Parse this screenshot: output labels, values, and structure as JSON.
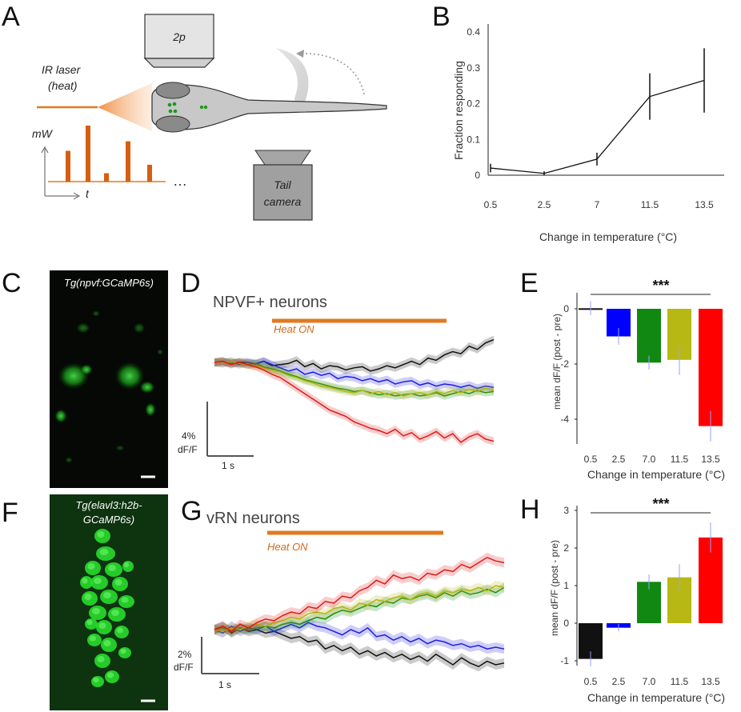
{
  "panels": {
    "A": {
      "label": "A",
      "microscope_label": "2p",
      "laser_label_1": "IR laser",
      "laser_label_2": "(heat)",
      "power_axis_label": "mW",
      "time_axis_label": "t",
      "ellipsis": "…",
      "camera_label_1": "Tail",
      "camera_label_2": "camera",
      "pulse_heights": [
        0.55,
        1.0,
        0.15,
        0.72,
        0.3
      ],
      "colors": {
        "laser": "#e07a20",
        "pulse": "#d45f12",
        "neuron": "#1a9a1a",
        "fish": "#c8c8c8"
      }
    },
    "B": {
      "label": "B"
    },
    "C": {
      "label": "C",
      "image_title": "Tg(npvf:GCaMP6s)"
    },
    "D": {
      "label": "D",
      "title": "NPVF+ neurons",
      "heat_label": "Heat ON",
      "scale_y_1": "4%",
      "scale_y_2": "dF/F",
      "scale_x": "1 s"
    },
    "E": {
      "label": "E",
      "stars": "***"
    },
    "F": {
      "label": "F",
      "image_title_1": "Tg(elavl3:h2b-",
      "image_title_2": "GCaMP6s)"
    },
    "G": {
      "label": "G",
      "title": "vRN neurons",
      "heat_label": "Heat ON",
      "scale_y_1": "2%",
      "scale_y_2": "dF/F",
      "scale_x": "1 s"
    },
    "H": {
      "label": "H",
      "stars": "***"
    }
  },
  "series_colors": [
    "#111111",
    "#1f1fe0",
    "#138a13",
    "#b5b512",
    "#e01a1a"
  ],
  "chart_data": [
    {
      "id": "B",
      "type": "line",
      "categories": [
        "0.5",
        "2.5",
        "7",
        "11.5",
        "13.5"
      ],
      "values": [
        0.02,
        0.005,
        0.045,
        0.22,
        0.265
      ],
      "errors": [
        0.012,
        0.006,
        0.018,
        0.065,
        0.09
      ],
      "xlabel": "Change in temperature (°C)",
      "ylabel": "Fraction responding",
      "yticks": [
        "0",
        "0.1",
        "0.2",
        "0.3",
        "0.4"
      ],
      "ylim": [
        0,
        0.42
      ]
    },
    {
      "id": "E",
      "type": "bar",
      "categories": [
        "0.5",
        "2.5",
        "7.0",
        "11.5",
        "13.5"
      ],
      "values": [
        0.02,
        -1.0,
        -1.95,
        -1.85,
        -4.25
      ],
      "errors": [
        0.25,
        0.3,
        0.25,
        0.55,
        0.55
      ],
      "colors": [
        "#111111",
        "#0000ff",
        "#118811",
        "#b8b814",
        "#ff0000"
      ],
      "xlabel": "Change in temperature (°C)",
      "ylabel": "mean dF/F (post - pre)",
      "yticks": [
        "0",
        "-2",
        "-4"
      ],
      "ylim": [
        -4.8,
        0.7
      ]
    },
    {
      "id": "H",
      "type": "bar",
      "categories": [
        "0.5",
        "2.5",
        "7.0",
        "11.5",
        "13.5"
      ],
      "values": [
        -0.95,
        -0.12,
        1.1,
        1.22,
        2.28
      ],
      "errors": [
        0.2,
        0.1,
        0.2,
        0.35,
        0.4
      ],
      "colors": [
        "#111111",
        "#0000ff",
        "#118811",
        "#b8b814",
        "#ff0000"
      ],
      "xlabel": "Change in temperature (°C)",
      "ylabel": "mean dF/F (post - pre)",
      "yticks": [
        "-1",
        "0",
        "1",
        "2",
        "3"
      ],
      "ylim": [
        -1.15,
        3.1
      ]
    },
    {
      "id": "D",
      "type": "line",
      "series": [
        {
          "values": [
            0,
            0.05,
            -0.05,
            0.02,
            0.0,
            -0.08,
            0.05,
            -0.15,
            -0.1,
            -0.05,
            0.1,
            -0.2,
            -0.05,
            -0.3,
            -0.15,
            -0.2,
            -0.35,
            -0.25,
            -0.2,
            -0.4,
            -0.3,
            -0.15,
            -0.25,
            -0.1,
            0.05,
            -0.1,
            0.2,
            0.1,
            0.35,
            0.5,
            0.4,
            0.75,
            0.6,
            0.9,
            1.05
          ]
        },
        {
          "values": [
            0,
            -0.05,
            0.05,
            -0.1,
            0.0,
            -0.05,
            0.05,
            -0.1,
            -0.25,
            -0.4,
            -0.3,
            -0.55,
            -0.45,
            -0.6,
            -0.5,
            -0.75,
            -0.65,
            -0.7,
            -0.85,
            -0.75,
            -0.9,
            -0.8,
            -1.0,
            -0.9,
            -0.85,
            -1.05,
            -0.95,
            -1.1,
            -1.0,
            -1.05,
            -1.15,
            -1.05,
            -1.2,
            -1.1,
            -1.15
          ]
        },
        {
          "values": [
            0,
            0.05,
            -0.05,
            0.0,
            -0.1,
            -0.05,
            -0.2,
            -0.3,
            -0.4,
            -0.55,
            -0.65,
            -0.8,
            -0.9,
            -1.0,
            -1.1,
            -1.2,
            -1.25,
            -1.35,
            -1.3,
            -1.4,
            -1.5,
            -1.45,
            -1.55,
            -1.5,
            -1.45,
            -1.55,
            -1.5,
            -1.4,
            -1.55,
            -1.45,
            -1.35,
            -1.45,
            -1.3,
            -1.4,
            -1.35
          ]
        },
        {
          "values": [
            0,
            -0.05,
            0.05,
            -0.05,
            -0.1,
            -0.15,
            -0.25,
            -0.35,
            -0.45,
            -0.6,
            -0.7,
            -0.85,
            -0.95,
            -1.1,
            -1.15,
            -1.25,
            -1.35,
            -1.4,
            -1.3,
            -1.45,
            -1.35,
            -1.5,
            -1.4,
            -1.55,
            -1.45,
            -1.4,
            -1.5,
            -1.35,
            -1.45,
            -1.3,
            -1.4,
            -1.25,
            -1.35,
            -1.2,
            -1.3
          ]
        },
        {
          "values": [
            0,
            0.05,
            -0.1,
            0.0,
            -0.1,
            -0.2,
            -0.35,
            -0.55,
            -0.7,
            -0.95,
            -1.2,
            -1.45,
            -1.7,
            -1.95,
            -2.2,
            -2.35,
            -2.5,
            -2.75,
            -2.9,
            -3.05,
            -3.15,
            -3.3,
            -3.1,
            -3.4,
            -3.25,
            -3.55,
            -3.4,
            -3.2,
            -3.5,
            -3.3,
            -3.7,
            -3.45,
            -3.3,
            -3.55,
            -3.65
          ]
        }
      ]
    },
    {
      "id": "G",
      "type": "line",
      "series": [
        {
          "values": [
            0,
            0.1,
            -0.1,
            0.05,
            -0.05,
            0.0,
            -0.1,
            -0.05,
            -0.15,
            -0.25,
            -0.2,
            -0.35,
            -0.3,
            -0.55,
            -0.45,
            -0.6,
            -0.5,
            -0.7,
            -0.6,
            -0.75,
            -0.65,
            -0.8,
            -0.7,
            -0.85,
            -0.75,
            -0.9,
            -0.7,
            -0.85,
            -1.0,
            -0.8,
            -0.95,
            -1.05,
            -0.9,
            -1.0,
            -0.95
          ]
        },
        {
          "values": [
            0,
            -0.1,
            0.1,
            -0.05,
            0.05,
            0.0,
            0.1,
            -0.05,
            0.05,
            0.15,
            0.05,
            0.2,
            0.1,
            0.05,
            -0.05,
            -0.15,
            0.0,
            -0.1,
            0.05,
            -0.2,
            -0.15,
            -0.3,
            -0.2,
            -0.35,
            -0.25,
            -0.4,
            -0.3,
            -0.35,
            -0.45,
            -0.4,
            -0.5,
            -0.45,
            -0.55,
            -0.5,
            -0.55
          ]
        },
        {
          "values": [
            0,
            0.05,
            -0.05,
            0.05,
            0.0,
            0.05,
            0.1,
            0.05,
            0.15,
            0.2,
            0.15,
            0.25,
            0.35,
            0.3,
            0.45,
            0.55,
            0.5,
            0.6,
            0.7,
            0.65,
            0.8,
            0.75,
            0.9,
            0.85,
            0.95,
            1.0,
            0.9,
            1.05,
            0.95,
            1.1,
            1.0,
            1.05,
            1.15,
            1.05,
            1.2
          ]
        },
        {
          "values": [
            0,
            -0.05,
            0.05,
            0.0,
            0.1,
            0.15,
            0.1,
            0.2,
            0.25,
            0.35,
            0.3,
            0.45,
            0.5,
            0.45,
            0.6,
            0.65,
            0.55,
            0.75,
            0.7,
            0.85,
            0.8,
            0.9,
            0.95,
            0.85,
            1.0,
            1.05,
            0.95,
            1.1,
            1.05,
            1.15,
            1.1,
            1.2,
            1.1,
            1.25,
            1.2
          ]
        },
        {
          "values": [
            0,
            0.1,
            -0.05,
            0.15,
            0.05,
            0.2,
            0.3,
            0.25,
            0.4,
            0.5,
            0.45,
            0.65,
            0.6,
            0.8,
            0.75,
            0.95,
            0.9,
            1.1,
            1.2,
            1.4,
            1.3,
            1.55,
            1.45,
            1.5,
            1.4,
            1.6,
            1.55,
            1.7,
            1.65,
            1.85,
            1.75,
            1.9,
            2.05,
            1.95,
            1.9
          ]
        }
      ]
    }
  ]
}
